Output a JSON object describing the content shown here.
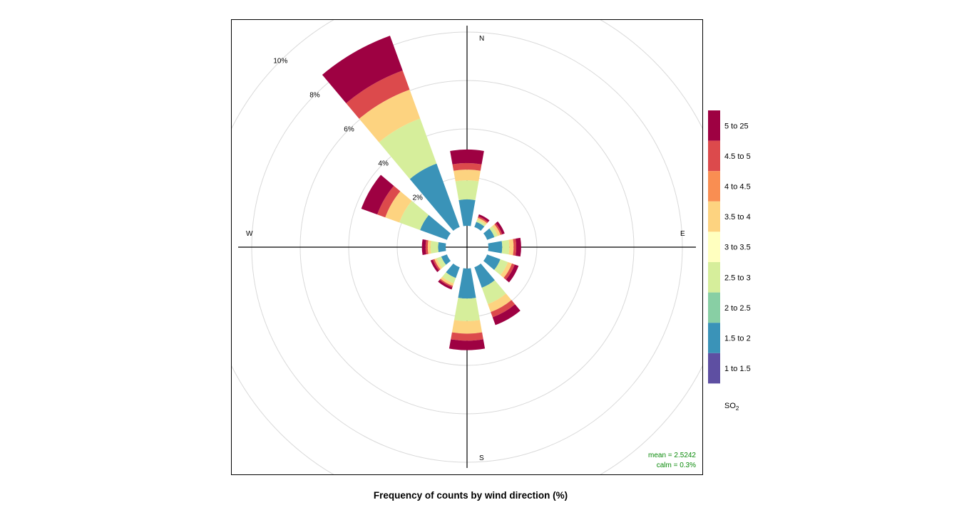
{
  "chart_data": {
    "type": "windrose",
    "title": "Frequency of counts by wind direction (%)",
    "direction_labels": {
      "N": "N",
      "E": "E",
      "S": "S",
      "W": "W"
    },
    "radial_ticks": [
      2,
      4,
      6,
      8,
      10
    ],
    "radial_tick_suffix": "%",
    "radial_unit": "%",
    "directions_deg": [
      0,
      30,
      60,
      90,
      120,
      150,
      180,
      210,
      240,
      270,
      300,
      330
    ],
    "legend_title": "SO",
    "legend_title_subscript": "2",
    "bins": [
      {
        "label": "1 to 1.5",
        "color": "#5E4FA2"
      },
      {
        "label": "1.5 to 2",
        "color": "#3A93B8"
      },
      {
        "label": "2 to 2.5",
        "color": "#88CFA4"
      },
      {
        "label": "2.5 to 3",
        "color": "#D6EE9B"
      },
      {
        "label": "3 to 3.5",
        "color": "#FFFFBF"
      },
      {
        "label": "3.5 to 4",
        "color": "#FDD380"
      },
      {
        "label": "4 to 4.5",
        "color": "#F98E52"
      },
      {
        "label": "4.5 to 5",
        "color": "#DC4A4C"
      },
      {
        "label": "5 to 25",
        "color": "#9E0142"
      }
    ],
    "series_note": "frequency (%) per direction for each bin, in bin order",
    "frequencies": [
      [
        0,
        1.09,
        0,
        0.79,
        0,
        0.44,
        0,
        0.27,
        0.56
      ],
      [
        0,
        0.23,
        0,
        0.09,
        0,
        0.09,
        0,
        0.06,
        0.09
      ],
      [
        0,
        0.32,
        0,
        0.15,
        0,
        0.12,
        0,
        0.07,
        0.11
      ],
      [
        0,
        0.57,
        0,
        0.29,
        0,
        0.18,
        0,
        0.11,
        0.2
      ],
      [
        0,
        0.58,
        0,
        0.33,
        0,
        0.18,
        0,
        0.12,
        0.17
      ],
      [
        0,
        0.9,
        0,
        0.72,
        0,
        0.35,
        0,
        0.23,
        0.34
      ],
      [
        0,
        1.24,
        0,
        0.93,
        0,
        0.52,
        0,
        0.29,
        0.39
      ],
      [
        0,
        0.47,
        0,
        0.24,
        0,
        0.11,
        0,
        0.06,
        0.1
      ],
      [
        0,
        0.25,
        0,
        0.2,
        0,
        0.1,
        0,
        0.07,
        0.1
      ],
      [
        0,
        0.31,
        0,
        0.31,
        0,
        0.12,
        0,
        0.09,
        0.15
      ],
      [
        0,
        1.18,
        0,
        0.91,
        0,
        0.62,
        0,
        0.35,
        0.7
      ],
      [
        0,
        2.79,
        0,
        1.98,
        0,
        1.27,
        0,
        0.84,
        1.53
      ]
    ],
    "stats": {
      "mean": "mean = 2.5242",
      "calm": "calm = 0.3%"
    },
    "grid": true,
    "legend_position": "right"
  }
}
